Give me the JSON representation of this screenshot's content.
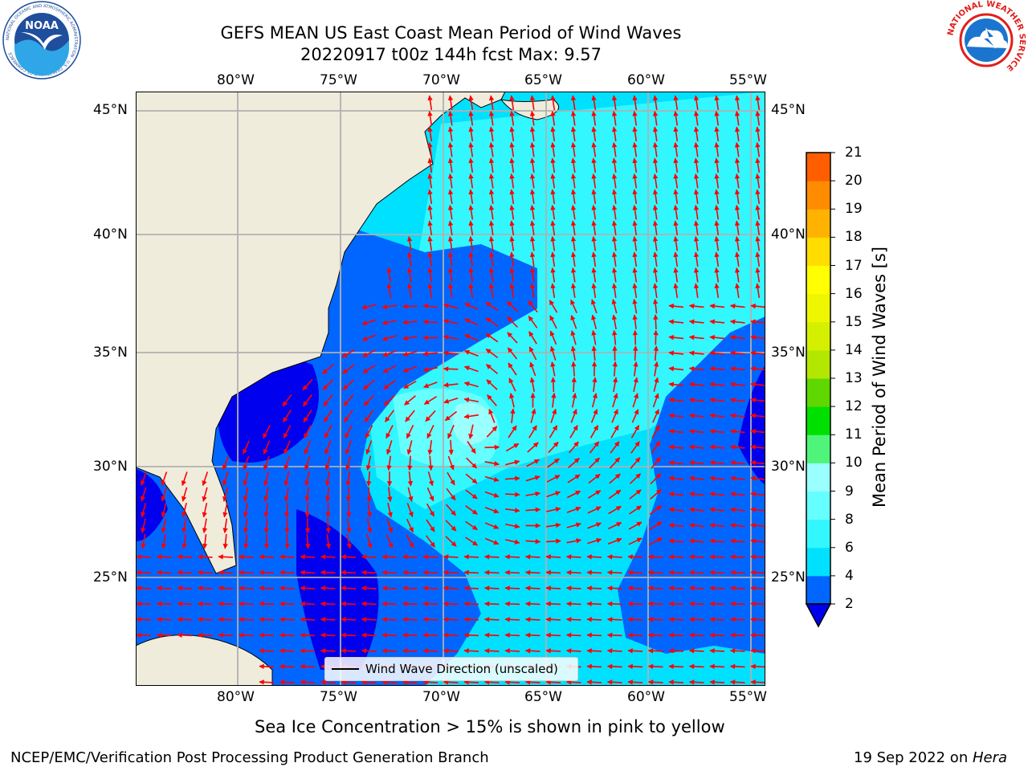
{
  "title": {
    "line1": "GEFS MEAN US East Coast Mean Period of Wind Waves",
    "line2": "20220917 t00z 144h fcst   Max: 9.57"
  },
  "map": {
    "lon_labels": [
      "80°W",
      "75°W",
      "70°W",
      "65°W",
      "60°W",
      "55°W"
    ],
    "lat_labels": [
      "45°N",
      "40°N",
      "35°N",
      "30°N",
      "25°N"
    ],
    "land_color": "#efecdc",
    "gridline_color": "#b0b0b0",
    "arrow_color": "#ff0000",
    "legend_label": "Wind Wave Direction (unscaled)"
  },
  "colorbar": {
    "title": "Mean Period of Wind Waves [s]",
    "tick_labels": [
      "2",
      "4",
      "6",
      "8",
      "9",
      "10",
      "11",
      "12",
      "13",
      "14",
      "15",
      "16",
      "17",
      "18",
      "19",
      "20",
      "21"
    ],
    "colors": [
      "#0066ff",
      "#00e1ff",
      "#33f7ff",
      "#66ffff",
      "#99ffff",
      "#4ff57a",
      "#00e000",
      "#5fd700",
      "#b3e600",
      "#d4f000",
      "#eef700",
      "#ffff00",
      "#ffdd00",
      "#ffb300",
      "#ff8c00",
      "#ff5e00",
      "#ff2a00",
      "#ff0000"
    ],
    "under_color": "#0000ee"
  },
  "footer": {
    "note": "Sea Ice Concentration > 15% is shown in pink to yellow",
    "credit": "NCEP/EMC/Verification Post Processing Product Generation Branch",
    "date": "19 Sep 2022 on",
    "machine": "Hera"
  },
  "logos": {
    "noaa_text": "NOAA",
    "noaa_ring": "NATIONAL OCEANIC AND ATMOSPHERIC ADMINISTRATION · U.S. DEPARTMENT OF COMMERCE",
    "nws_ring": "NATIONAL WEATHER SERVICE"
  }
}
